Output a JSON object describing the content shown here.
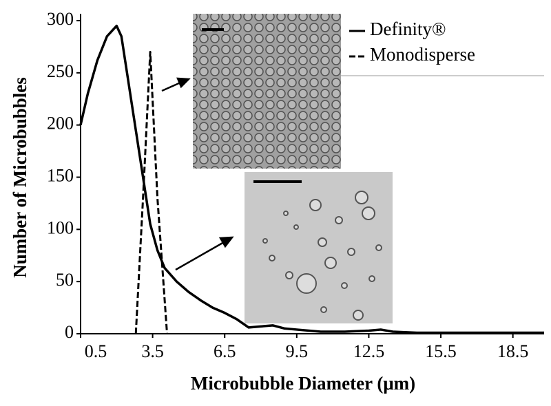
{
  "chart_data": {
    "type": "line",
    "xlabel": "Microbubble Diameter (μm)",
    "ylabel": "Number of Microbubbles",
    "xlim": [
      0.5,
      19.8
    ],
    "xticks": [
      0.5,
      3.5,
      6.5,
      9.5,
      12.5,
      15.5,
      18.5
    ],
    "ylim": [
      0,
      300
    ],
    "yticks": [
      0,
      50,
      100,
      150,
      200,
      250,
      300
    ],
    "legend": "upper right",
    "series": [
      {
        "name": "Definity®",
        "color": "#000000",
        "dash": "solid",
        "x": [
          0.5,
          0.8,
          1.2,
          1.6,
          2.0,
          2.2,
          2.5,
          2.8,
          3.1,
          3.4,
          3.7,
          4.0,
          4.5,
          5.0,
          5.5,
          6.0,
          6.5,
          7.0,
          7.5,
          8.0,
          8.5,
          9.0,
          9.5,
          10.5,
          11.5,
          12.5,
          13.0,
          13.5,
          14.5,
          15.5,
          17,
          18.5,
          19.8
        ],
        "values": [
          200,
          230,
          262,
          285,
          295,
          285,
          240,
          195,
          150,
          105,
          80,
          63,
          50,
          40,
          32,
          25,
          20,
          14,
          6,
          7,
          8,
          5,
          4,
          2,
          2,
          3,
          4,
          2,
          1,
          1,
          1,
          1,
          1
        ]
      },
      {
        "name": "Monodisperse",
        "color": "#000000",
        "dash": "dashed",
        "x": [
          2.8,
          3.1,
          3.4,
          3.7,
          4.1
        ],
        "values": [
          0,
          130,
          270,
          130,
          0
        ]
      }
    ]
  }
}
